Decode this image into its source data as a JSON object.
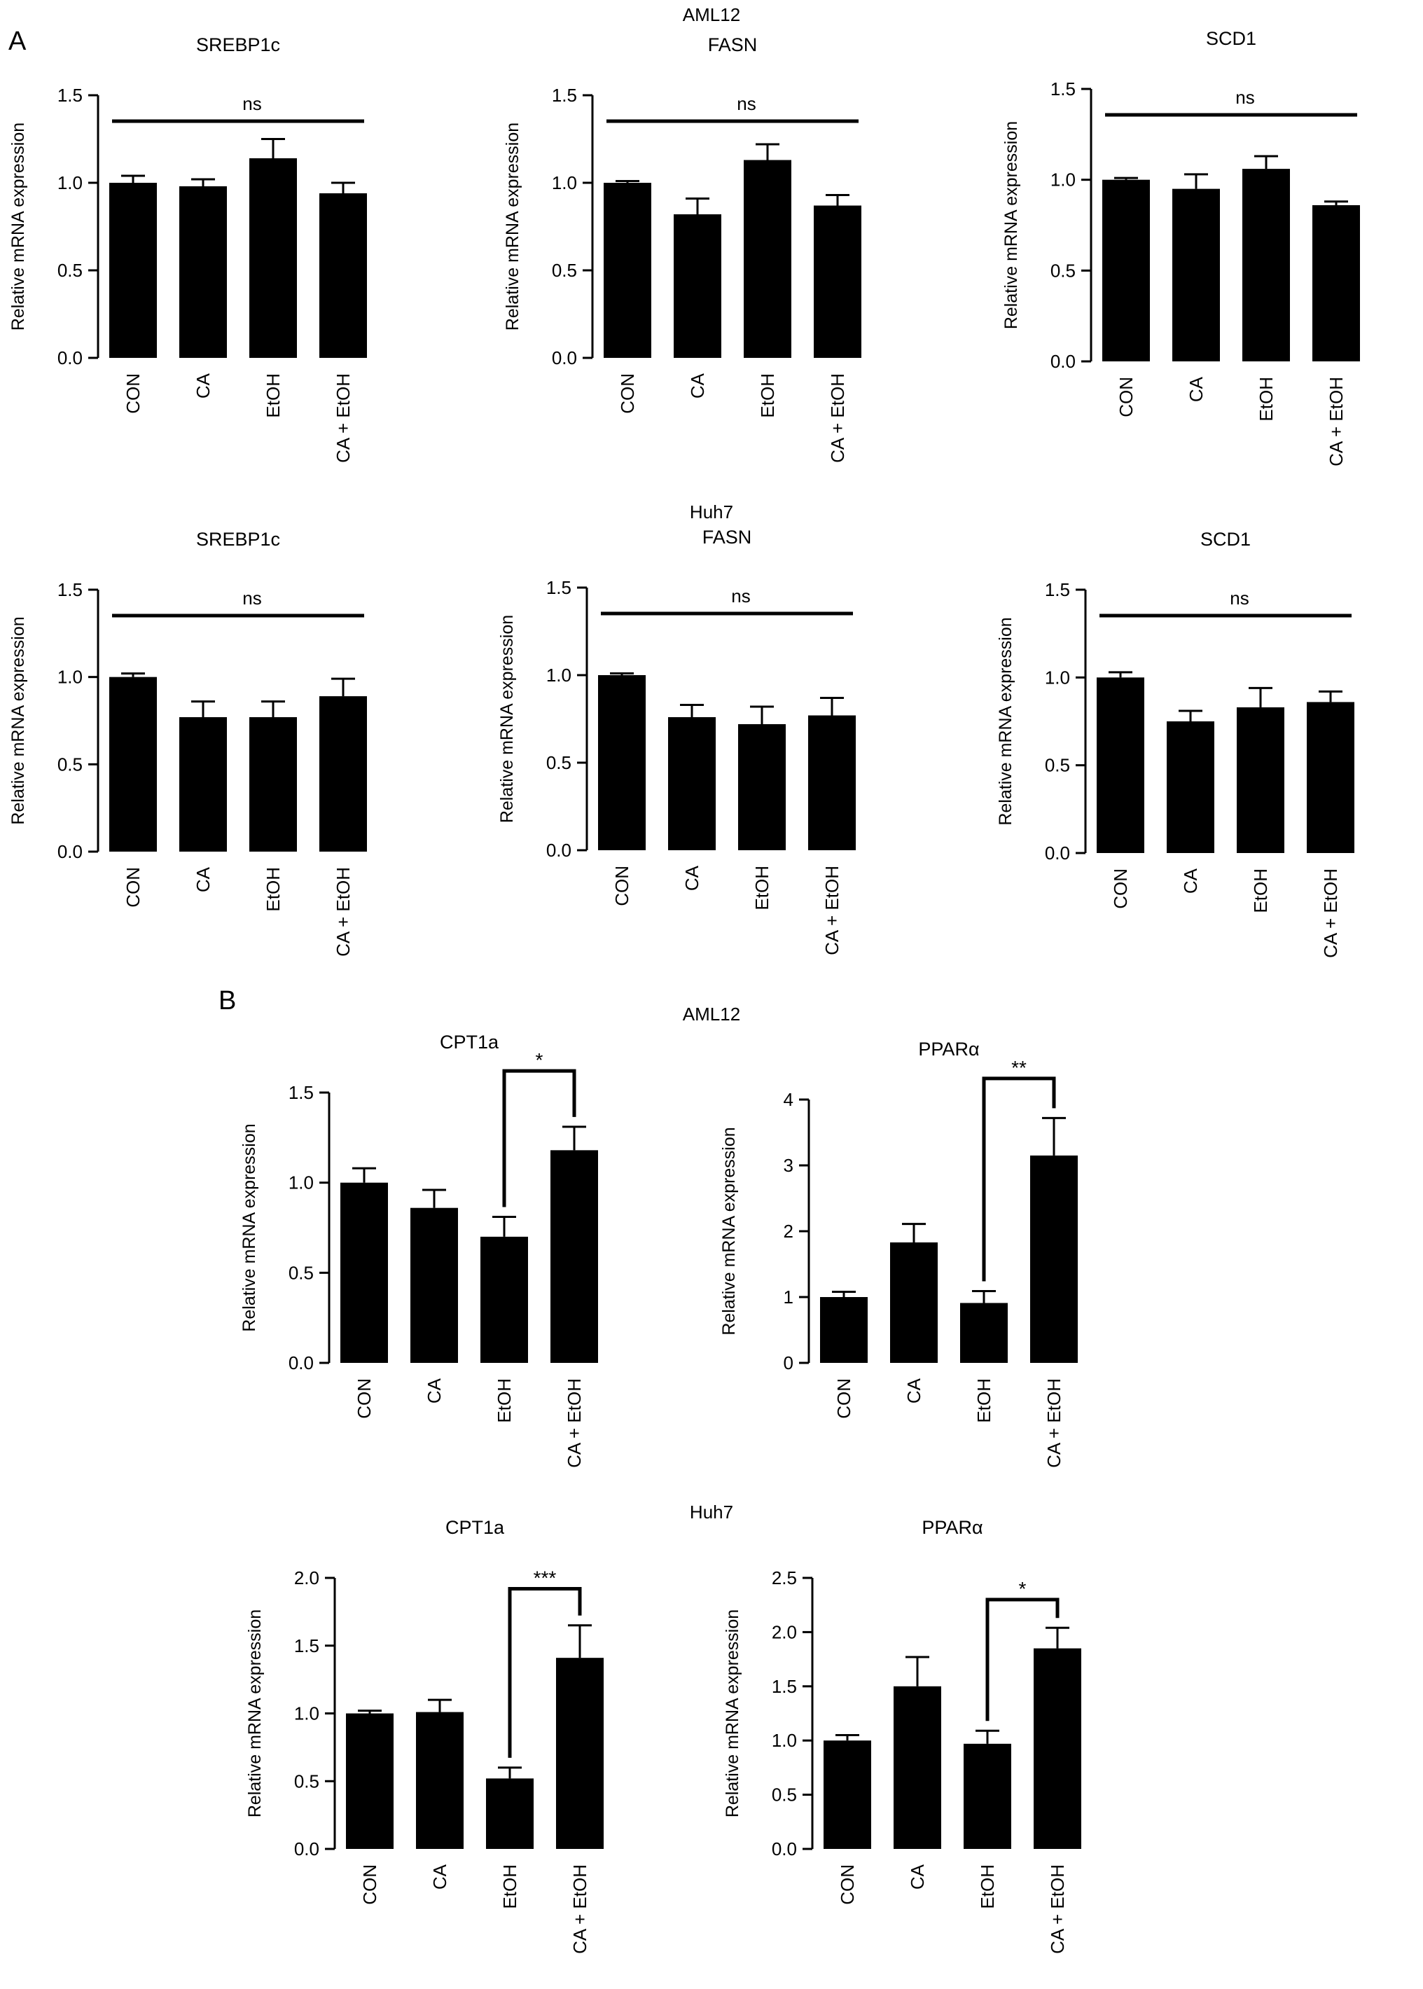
{
  "panel_labels": {
    "a": "A",
    "b": "B"
  },
  "groups": {
    "a_top": "AML12",
    "a_bottom": "Huh7",
    "b_top": "AML12",
    "b_bottom": "Huh7"
  },
  "common": {
    "ylabel": "Relative mRNA expression",
    "categories": [
      "CON",
      "CA",
      "EtOH",
      "CA + EtOH"
    ]
  },
  "chart_data": [
    {
      "id": "a-aml12-srebp1c",
      "type": "bar",
      "title": "SREBP1c",
      "ylabel": "Relative mRNA expression",
      "categories": [
        "CON",
        "CA",
        "EtOH",
        "CA + EtOH"
      ],
      "values": [
        1.0,
        0.98,
        1.14,
        0.94
      ],
      "errors": [
        0.04,
        0.04,
        0.11,
        0.06
      ],
      "ylim": [
        0,
        1.5
      ],
      "yticks": [
        0.0,
        0.5,
        1.0,
        1.5
      ],
      "tick_format": "0.0",
      "annotation": {
        "type": "line",
        "label": "ns"
      }
    },
    {
      "id": "a-aml12-fasn",
      "type": "bar",
      "title": "FASN",
      "ylabel": "Relative mRNA expression",
      "categories": [
        "CON",
        "CA",
        "EtOH",
        "CA + EtOH"
      ],
      "values": [
        1.0,
        0.82,
        1.13,
        0.87
      ],
      "errors": [
        0.01,
        0.09,
        0.09,
        0.06
      ],
      "ylim": [
        0,
        1.5
      ],
      "yticks": [
        0.0,
        0.5,
        1.0,
        1.5
      ],
      "tick_format": "0.0",
      "annotation": {
        "type": "line",
        "label": "ns"
      }
    },
    {
      "id": "a-aml12-scd1",
      "type": "bar",
      "title": "SCD1",
      "ylabel": "Relative mRNA expression",
      "categories": [
        "CON",
        "CA",
        "EtOH",
        "CA + EtOH"
      ],
      "values": [
        1.0,
        0.95,
        1.06,
        0.86
      ],
      "errors": [
        0.01,
        0.08,
        0.07,
        0.02
      ],
      "ylim": [
        0,
        1.5
      ],
      "yticks": [
        0.0,
        0.5,
        1.0,
        1.5
      ],
      "tick_format": "0.0",
      "annotation": {
        "type": "line",
        "label": "ns"
      }
    },
    {
      "id": "a-huh7-srebp1c",
      "type": "bar",
      "title": "SREBP1c",
      "ylabel": "Relative mRNA expression",
      "categories": [
        "CON",
        "CA",
        "EtOH",
        "CA + EtOH"
      ],
      "values": [
        1.0,
        0.77,
        0.77,
        0.89
      ],
      "errors": [
        0.02,
        0.09,
        0.09,
        0.1
      ],
      "ylim": [
        0,
        1.5
      ],
      "yticks": [
        0.0,
        0.5,
        1.0,
        1.5
      ],
      "tick_format": "0.0",
      "annotation": {
        "type": "line",
        "label": "ns"
      }
    },
    {
      "id": "a-huh7-fasn",
      "type": "bar",
      "title": "FASN",
      "ylabel": "Relative mRNA expression",
      "categories": [
        "CON",
        "CA",
        "EtOH",
        "CA + EtOH"
      ],
      "values": [
        1.0,
        0.76,
        0.72,
        0.77
      ],
      "errors": [
        0.01,
        0.07,
        0.1,
        0.1
      ],
      "ylim": [
        0,
        1.5
      ],
      "yticks": [
        0.0,
        0.5,
        1.0,
        1.5
      ],
      "tick_format": "0.0",
      "annotation": {
        "type": "line",
        "label": "ns"
      }
    },
    {
      "id": "a-huh7-scd1",
      "type": "bar",
      "title": "SCD1",
      "ylabel": "Relative mRNA expression",
      "categories": [
        "CON",
        "CA",
        "EtOH",
        "CA + EtOH"
      ],
      "values": [
        1.0,
        0.75,
        0.83,
        0.86
      ],
      "errors": [
        0.03,
        0.06,
        0.11,
        0.06
      ],
      "ylim": [
        0,
        1.5
      ],
      "yticks": [
        0.0,
        0.5,
        1.0,
        1.5
      ],
      "tick_format": "0.0",
      "annotation": {
        "type": "line",
        "label": "ns"
      }
    },
    {
      "id": "b-aml12-cpt1a",
      "type": "bar",
      "title": "CPT1a",
      "ylabel": "Relative mRNA expression",
      "categories": [
        "CON",
        "CA",
        "EtOH",
        "CA + EtOH"
      ],
      "values": [
        1.0,
        0.86,
        0.7,
        1.18
      ],
      "errors": [
        0.08,
        0.1,
        0.11,
        0.13
      ],
      "ylim": [
        0,
        1.5
      ],
      "yticks": [
        0.0,
        0.5,
        1.0,
        1.5
      ],
      "tick_format": "0.0",
      "annotation": {
        "type": "bracket",
        "label": "*",
        "from": 2,
        "to": 3,
        "top": 1.62
      }
    },
    {
      "id": "b-aml12-ppara",
      "type": "bar",
      "title": "PPARα",
      "ylabel": "Relative mRNA expression",
      "categories": [
        "CON",
        "CA",
        "EtOH",
        "CA + EtOH"
      ],
      "values": [
        1.0,
        1.83,
        0.91,
        3.15
      ],
      "errors": [
        0.08,
        0.28,
        0.18,
        0.57
      ],
      "ylim": [
        0,
        4
      ],
      "yticks": [
        0,
        1,
        2,
        3,
        4
      ],
      "tick_format": "0",
      "annotation": {
        "type": "bracket",
        "label": "**",
        "from": 2,
        "to": 3,
        "top": 4.32
      }
    },
    {
      "id": "b-huh7-cpt1a",
      "type": "bar",
      "title": "CPT1a",
      "ylabel": "Relative mRNA expression",
      "categories": [
        "CON",
        "CA",
        "EtOH",
        "CA + EtOH"
      ],
      "values": [
        1.0,
        1.01,
        0.52,
        1.41
      ],
      "errors": [
        0.02,
        0.09,
        0.08,
        0.24
      ],
      "ylim": [
        0,
        2.0
      ],
      "yticks": [
        0.0,
        0.5,
        1.0,
        1.5,
        2.0
      ],
      "tick_format": "0.0",
      "annotation": {
        "type": "bracket",
        "label": "***",
        "from": 2,
        "to": 3,
        "top": 1.92
      }
    },
    {
      "id": "b-huh7-ppara",
      "type": "bar",
      "title": "PPARα",
      "ylabel": "Relative mRNA expression",
      "categories": [
        "CON",
        "CA",
        "EtOH",
        "CA + EtOH"
      ],
      "values": [
        1.0,
        1.5,
        0.97,
        1.85
      ],
      "errors": [
        0.05,
        0.27,
        0.12,
        0.19
      ],
      "ylim": [
        0,
        2.5
      ],
      "yticks": [
        0.0,
        0.5,
        1.0,
        1.5,
        2.0,
        2.5
      ],
      "tick_format": "0.0",
      "annotation": {
        "type": "bracket",
        "label": "*",
        "from": 2,
        "to": 3,
        "top": 2.3
      }
    }
  ]
}
